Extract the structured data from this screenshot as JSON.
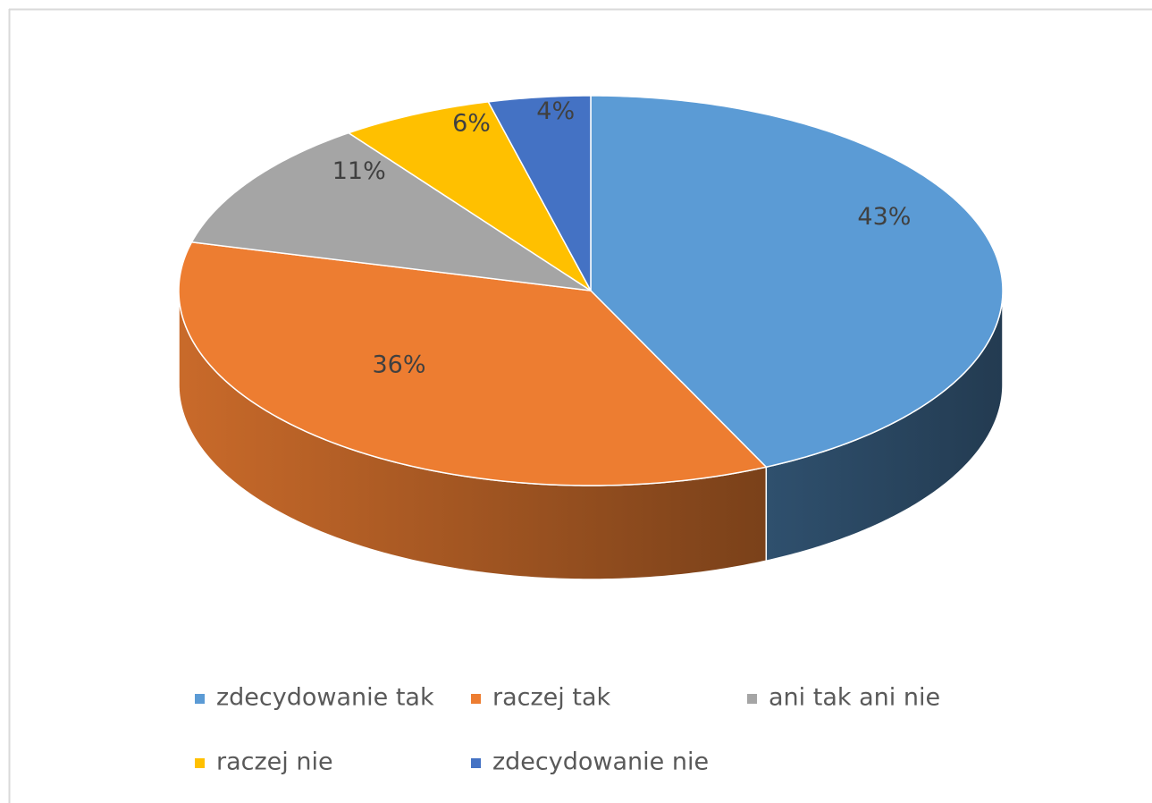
{
  "chart_data": {
    "type": "pie3d",
    "categories": [
      "zdecydowanie tak",
      "raczej tak",
      "ani tak ani nie",
      "raczej nie",
      "zdecydowanie nie"
    ],
    "values": [
      43,
      36,
      11,
      6,
      4
    ],
    "value_labels": [
      "43%",
      "36%",
      "11%",
      "6%",
      "4%"
    ],
    "colors": [
      "#5b9bd5",
      "#ed7d31",
      "#a5a5a5",
      "#ffc000",
      "#4472c4"
    ],
    "legend": "bottom"
  }
}
